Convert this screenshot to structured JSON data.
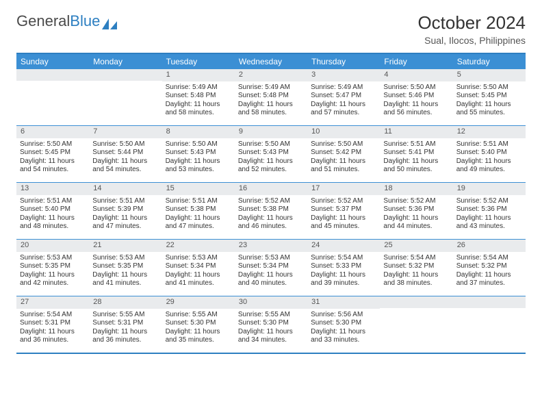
{
  "brand": {
    "part1": "General",
    "part2": "Blue"
  },
  "title": "October 2024",
  "location": "Sual, Ilocos, Philippines",
  "colors": {
    "header_blue": "#3b8fd4",
    "border_blue": "#2d7fc1",
    "daynum_bg": "#e9ebed",
    "text": "#333333",
    "bg": "#ffffff"
  },
  "dayNames": [
    "Sunday",
    "Monday",
    "Tuesday",
    "Wednesday",
    "Thursday",
    "Friday",
    "Saturday"
  ],
  "weeks": [
    [
      {
        "n": "",
        "sr": "",
        "ss": "",
        "dl1": "",
        "dl2": "",
        "empty": true
      },
      {
        "n": "",
        "sr": "",
        "ss": "",
        "dl1": "",
        "dl2": "",
        "empty": true
      },
      {
        "n": "1",
        "sr": "Sunrise: 5:49 AM",
        "ss": "Sunset: 5:48 PM",
        "dl1": "Daylight: 11 hours",
        "dl2": "and 58 minutes."
      },
      {
        "n": "2",
        "sr": "Sunrise: 5:49 AM",
        "ss": "Sunset: 5:48 PM",
        "dl1": "Daylight: 11 hours",
        "dl2": "and 58 minutes."
      },
      {
        "n": "3",
        "sr": "Sunrise: 5:49 AM",
        "ss": "Sunset: 5:47 PM",
        "dl1": "Daylight: 11 hours",
        "dl2": "and 57 minutes."
      },
      {
        "n": "4",
        "sr": "Sunrise: 5:50 AM",
        "ss": "Sunset: 5:46 PM",
        "dl1": "Daylight: 11 hours",
        "dl2": "and 56 minutes."
      },
      {
        "n": "5",
        "sr": "Sunrise: 5:50 AM",
        "ss": "Sunset: 5:45 PM",
        "dl1": "Daylight: 11 hours",
        "dl2": "and 55 minutes."
      }
    ],
    [
      {
        "n": "6",
        "sr": "Sunrise: 5:50 AM",
        "ss": "Sunset: 5:45 PM",
        "dl1": "Daylight: 11 hours",
        "dl2": "and 54 minutes."
      },
      {
        "n": "7",
        "sr": "Sunrise: 5:50 AM",
        "ss": "Sunset: 5:44 PM",
        "dl1": "Daylight: 11 hours",
        "dl2": "and 54 minutes."
      },
      {
        "n": "8",
        "sr": "Sunrise: 5:50 AM",
        "ss": "Sunset: 5:43 PM",
        "dl1": "Daylight: 11 hours",
        "dl2": "and 53 minutes."
      },
      {
        "n": "9",
        "sr": "Sunrise: 5:50 AM",
        "ss": "Sunset: 5:43 PM",
        "dl1": "Daylight: 11 hours",
        "dl2": "and 52 minutes."
      },
      {
        "n": "10",
        "sr": "Sunrise: 5:50 AM",
        "ss": "Sunset: 5:42 PM",
        "dl1": "Daylight: 11 hours",
        "dl2": "and 51 minutes."
      },
      {
        "n": "11",
        "sr": "Sunrise: 5:51 AM",
        "ss": "Sunset: 5:41 PM",
        "dl1": "Daylight: 11 hours",
        "dl2": "and 50 minutes."
      },
      {
        "n": "12",
        "sr": "Sunrise: 5:51 AM",
        "ss": "Sunset: 5:40 PM",
        "dl1": "Daylight: 11 hours",
        "dl2": "and 49 minutes."
      }
    ],
    [
      {
        "n": "13",
        "sr": "Sunrise: 5:51 AM",
        "ss": "Sunset: 5:40 PM",
        "dl1": "Daylight: 11 hours",
        "dl2": "and 48 minutes."
      },
      {
        "n": "14",
        "sr": "Sunrise: 5:51 AM",
        "ss": "Sunset: 5:39 PM",
        "dl1": "Daylight: 11 hours",
        "dl2": "and 47 minutes."
      },
      {
        "n": "15",
        "sr": "Sunrise: 5:51 AM",
        "ss": "Sunset: 5:38 PM",
        "dl1": "Daylight: 11 hours",
        "dl2": "and 47 minutes."
      },
      {
        "n": "16",
        "sr": "Sunrise: 5:52 AM",
        "ss": "Sunset: 5:38 PM",
        "dl1": "Daylight: 11 hours",
        "dl2": "and 46 minutes."
      },
      {
        "n": "17",
        "sr": "Sunrise: 5:52 AM",
        "ss": "Sunset: 5:37 PM",
        "dl1": "Daylight: 11 hours",
        "dl2": "and 45 minutes."
      },
      {
        "n": "18",
        "sr": "Sunrise: 5:52 AM",
        "ss": "Sunset: 5:36 PM",
        "dl1": "Daylight: 11 hours",
        "dl2": "and 44 minutes."
      },
      {
        "n": "19",
        "sr": "Sunrise: 5:52 AM",
        "ss": "Sunset: 5:36 PM",
        "dl1": "Daylight: 11 hours",
        "dl2": "and 43 minutes."
      }
    ],
    [
      {
        "n": "20",
        "sr": "Sunrise: 5:53 AM",
        "ss": "Sunset: 5:35 PM",
        "dl1": "Daylight: 11 hours",
        "dl2": "and 42 minutes."
      },
      {
        "n": "21",
        "sr": "Sunrise: 5:53 AM",
        "ss": "Sunset: 5:35 PM",
        "dl1": "Daylight: 11 hours",
        "dl2": "and 41 minutes."
      },
      {
        "n": "22",
        "sr": "Sunrise: 5:53 AM",
        "ss": "Sunset: 5:34 PM",
        "dl1": "Daylight: 11 hours",
        "dl2": "and 41 minutes."
      },
      {
        "n": "23",
        "sr": "Sunrise: 5:53 AM",
        "ss": "Sunset: 5:34 PM",
        "dl1": "Daylight: 11 hours",
        "dl2": "and 40 minutes."
      },
      {
        "n": "24",
        "sr": "Sunrise: 5:54 AM",
        "ss": "Sunset: 5:33 PM",
        "dl1": "Daylight: 11 hours",
        "dl2": "and 39 minutes."
      },
      {
        "n": "25",
        "sr": "Sunrise: 5:54 AM",
        "ss": "Sunset: 5:32 PM",
        "dl1": "Daylight: 11 hours",
        "dl2": "and 38 minutes."
      },
      {
        "n": "26",
        "sr": "Sunrise: 5:54 AM",
        "ss": "Sunset: 5:32 PM",
        "dl1": "Daylight: 11 hours",
        "dl2": "and 37 minutes."
      }
    ],
    [
      {
        "n": "27",
        "sr": "Sunrise: 5:54 AM",
        "ss": "Sunset: 5:31 PM",
        "dl1": "Daylight: 11 hours",
        "dl2": "and 36 minutes."
      },
      {
        "n": "28",
        "sr": "Sunrise: 5:55 AM",
        "ss": "Sunset: 5:31 PM",
        "dl1": "Daylight: 11 hours",
        "dl2": "and 36 minutes."
      },
      {
        "n": "29",
        "sr": "Sunrise: 5:55 AM",
        "ss": "Sunset: 5:30 PM",
        "dl1": "Daylight: 11 hours",
        "dl2": "and 35 minutes."
      },
      {
        "n": "30",
        "sr": "Sunrise: 5:55 AM",
        "ss": "Sunset: 5:30 PM",
        "dl1": "Daylight: 11 hours",
        "dl2": "and 34 minutes."
      },
      {
        "n": "31",
        "sr": "Sunrise: 5:56 AM",
        "ss": "Sunset: 5:30 PM",
        "dl1": "Daylight: 11 hours",
        "dl2": "and 33 minutes."
      },
      {
        "n": "",
        "sr": "",
        "ss": "",
        "dl1": "",
        "dl2": "",
        "empty": true
      },
      {
        "n": "",
        "sr": "",
        "ss": "",
        "dl1": "",
        "dl2": "",
        "empty": true
      }
    ]
  ]
}
